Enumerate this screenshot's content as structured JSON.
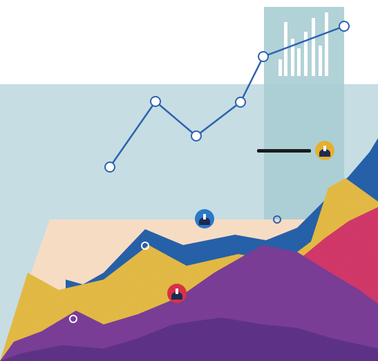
{
  "colors": {
    "background": "#ffffff",
    "panel": "#c6dde3",
    "panel_dark": "#b2cfd7",
    "highlight_band": "#a9cdd3",
    "inset_bars": "#ffffff",
    "line": "#2d62b0",
    "marker_fill": "#ffffff",
    "base_plane": "#f7dcc4",
    "layer_blue": "#2762ab",
    "layer_yellow": "#e6bc45",
    "layer_pink": "#d4386a",
    "layer_purple": "#7c3f99",
    "layer_purple_deep": "#5a3186",
    "pin_blue": "#2a78c8",
    "pin_yellow": "#e5b02f",
    "pin_red": "#d63246",
    "pin_base": "#1e2a52",
    "dash_dark": "#1a1a1a"
  },
  "icons": [
    "user-pin-icon",
    "line-marker-icon"
  ],
  "pins": [
    {
      "name": "user-pin-blue",
      "color": "pin_blue"
    },
    {
      "name": "user-pin-yellow",
      "color": "pin_yellow"
    },
    {
      "name": "user-pin-red",
      "color": "pin_red"
    }
  ]
}
